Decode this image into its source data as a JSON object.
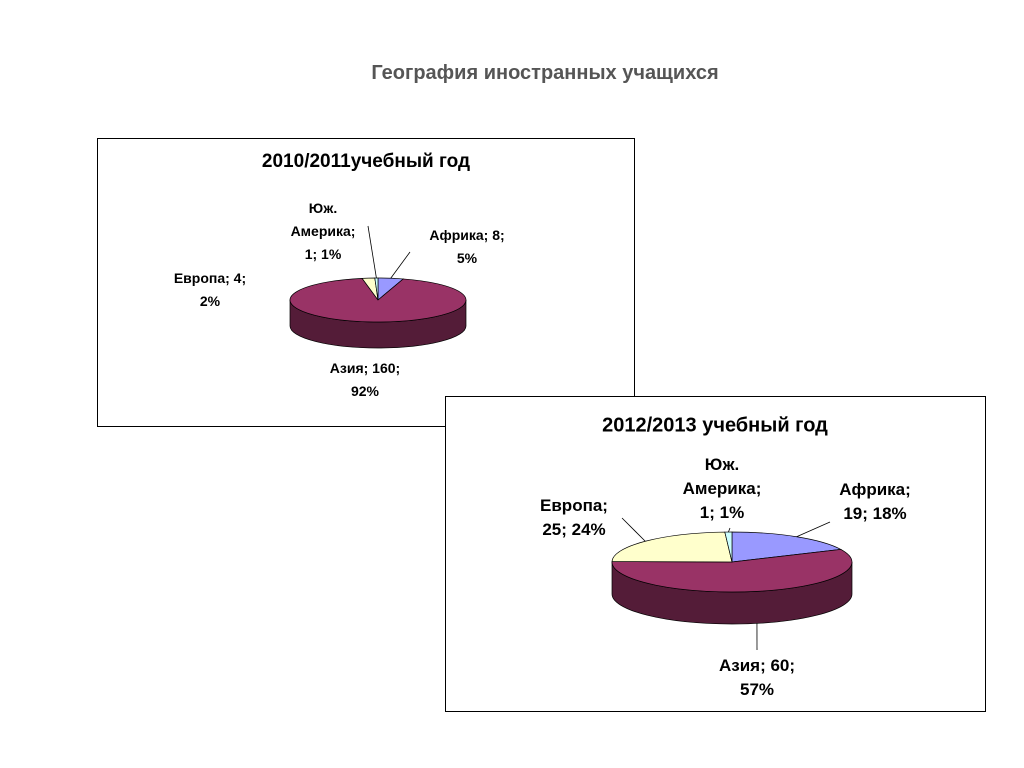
{
  "title": "География иностранных учащихся",
  "chart_data": [
    {
      "type": "pie",
      "title": "2010/2011учебный год",
      "values": [
        8,
        160,
        4,
        1
      ],
      "value_labels": [
        "Африка; 8; 5%",
        "Азия; 160; 92%",
        "Европа; 4; 2%",
        "Юж. Америка; 1; 1%"
      ],
      "colors": [
        "#9999ff",
        "#993366",
        "#ffffcc",
        "#ccffff"
      ]
    },
    {
      "type": "pie",
      "title": "2012/2013 учебный год",
      "values": [
        19,
        60,
        25,
        1
      ],
      "value_labels": [
        "Африка; 19; 18%",
        "Азия; 60; 57%",
        "Европа; 25; 24%",
        "Юж. Америка; 1; 1%"
      ],
      "colors": [
        "#9999ff",
        "#993366",
        "#ffffcc",
        "#ccffff"
      ]
    }
  ]
}
